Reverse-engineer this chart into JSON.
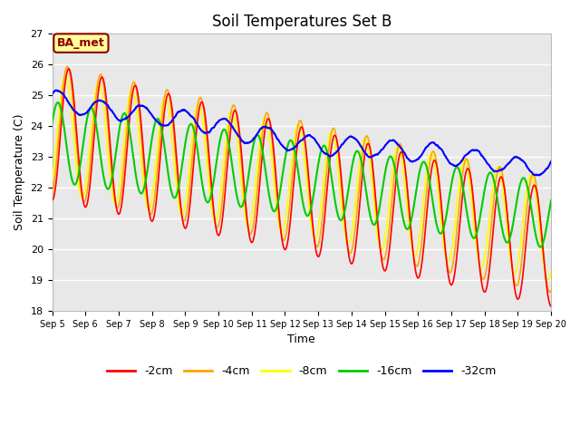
{
  "title": "Soil Temperatures Set B",
  "xlabel": "Time",
  "ylabel": "Soil Temperature (C)",
  "ylim": [
    18.0,
    27.0
  ],
  "yticks": [
    18.0,
    19.0,
    20.0,
    21.0,
    22.0,
    23.0,
    24.0,
    25.0,
    26.0,
    27.0
  ],
  "xtick_labels": [
    "Sep 5",
    "Sep 6",
    "Sep 7",
    "Sep 8",
    "Sep 9",
    "Sep 10",
    "Sep 11",
    "Sep 12",
    "Sep 13",
    "Sep 14",
    "Sep 15",
    "Sep 16",
    "Sep 17",
    "Sep 18",
    "Sep 19",
    "Sep 20"
  ],
  "annotation_text": "BA_met",
  "annotation_box_color": "#FFFF99",
  "annotation_box_edge": "#8B0000",
  "line_colors": {
    "-2cm": "#FF0000",
    "-4cm": "#FFA500",
    "-8cm": "#FFFF00",
    "-16cm": "#00CC00",
    "-32cm": "#0000FF"
  },
  "plot_bg_color": "#E8E8E8",
  "fig_bg_color": "#FFFFFF",
  "grid_color": "#FFFFFF",
  "n_points": 1500,
  "n_days": 15
}
